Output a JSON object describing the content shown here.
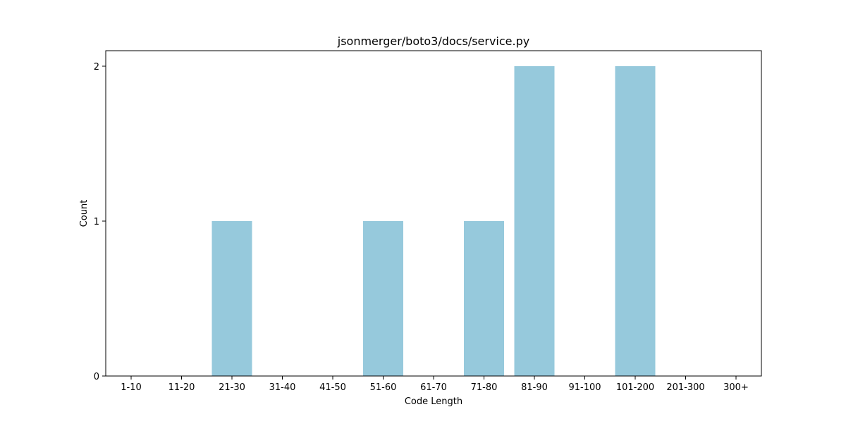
{
  "chart_data": {
    "type": "bar",
    "title": "jsonmerger/boto3/docs/service.py",
    "xlabel": "Code Length",
    "ylabel": "Count",
    "categories": [
      "1-10",
      "11-20",
      "21-30",
      "31-40",
      "41-50",
      "51-60",
      "61-70",
      "71-80",
      "81-90",
      "91-100",
      "101-200",
      "201-300",
      "300+"
    ],
    "values": [
      0,
      0,
      1,
      0,
      0,
      1,
      0,
      1,
      2,
      0,
      2,
      0,
      0
    ],
    "yticks": [
      "0",
      "1",
      "2"
    ],
    "ylim": [
      0,
      2.1
    ],
    "bar_color": "#96c9dc",
    "grid": false,
    "legend": "none"
  }
}
